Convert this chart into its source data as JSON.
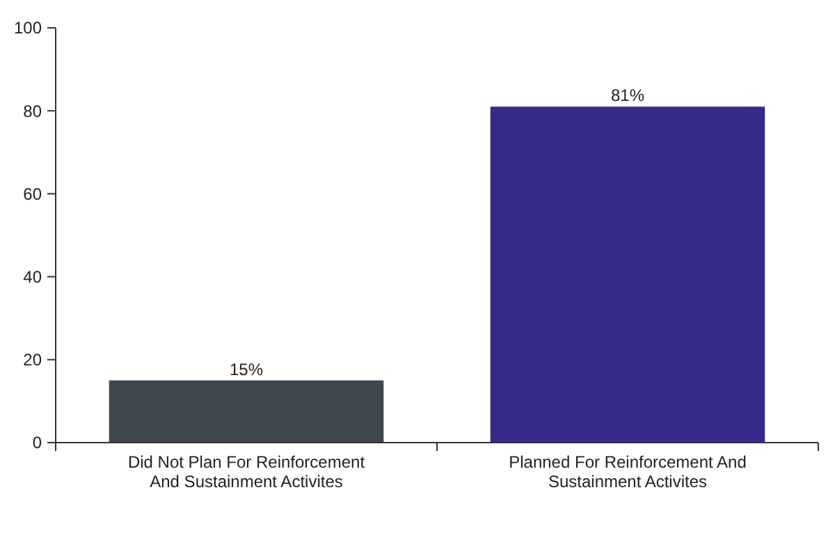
{
  "chart_data": {
    "type": "bar",
    "categories": [
      "Did Not Plan For Reinforcement And Sustainment Activites",
      "Planned For Reinforcement And Sustainment Activites"
    ],
    "values": [
      15,
      81
    ],
    "colors": [
      "#3f484e",
      "#352a87"
    ],
    "value_labels": [
      "15%",
      "81%"
    ],
    "ylim": [
      0,
      100
    ],
    "yticks": [
      0,
      20,
      40,
      60,
      80,
      100
    ],
    "grid": false
  }
}
